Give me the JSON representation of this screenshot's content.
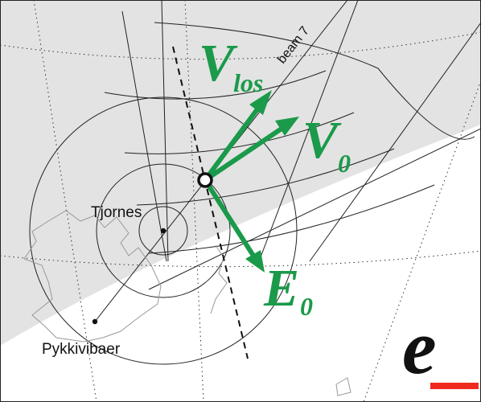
{
  "labels": {
    "beam": "beam 7",
    "v_los_main": "V",
    "v_los_sub": "los",
    "v0_main": "V",
    "v0_sub": "0",
    "e0_main": "E",
    "e0_sub": "0",
    "station_1": "Tjornes",
    "station_2": "Pykkivibaer",
    "panel": "e"
  },
  "colors": {
    "vector": "#1a9a4a",
    "panel_bar": "#ee2a1f",
    "shaded_region": "#e3e3e3",
    "grid": "#222222"
  }
}
